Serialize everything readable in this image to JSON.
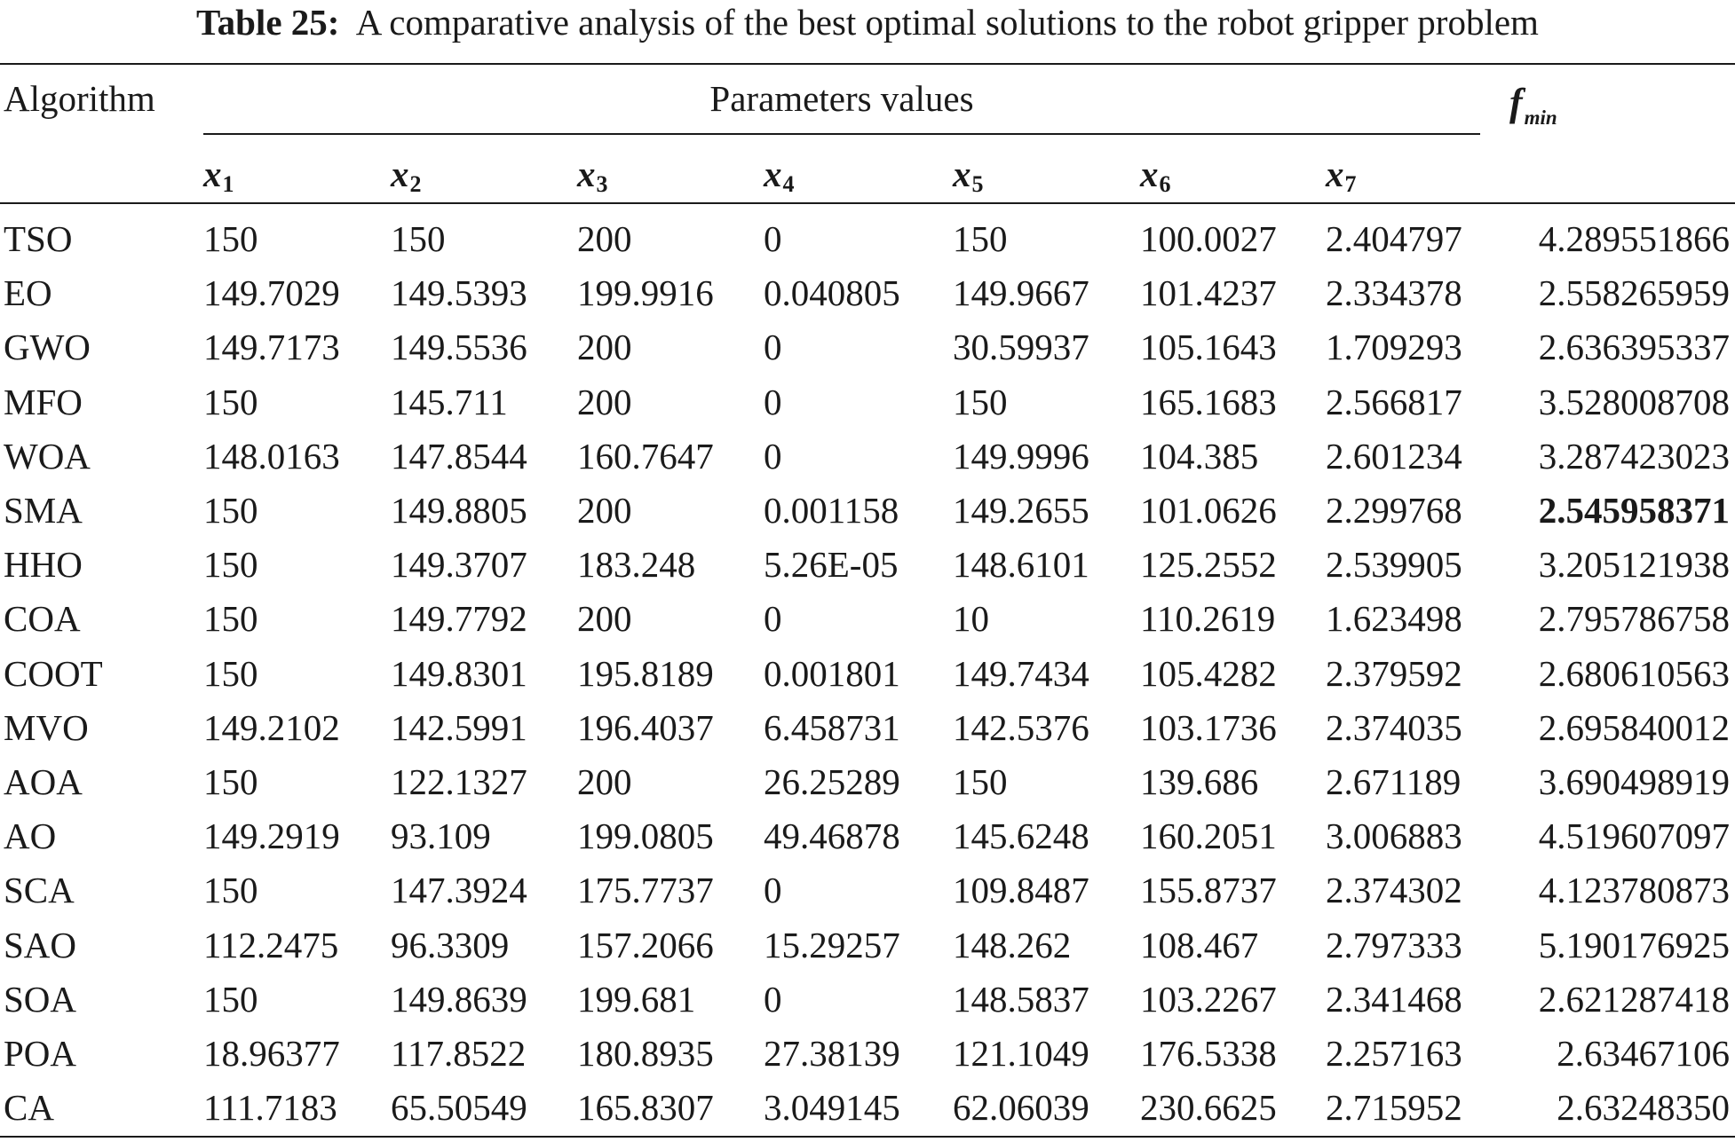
{
  "caption": {
    "label": "Table 25:",
    "text": "A comparative analysis of the best optimal solutions to the robot gripper problem"
  },
  "header": {
    "algorithm": "Algorithm",
    "params_group": "Parameters values",
    "fmin_base": "f",
    "fmin_sub": "min",
    "vars": [
      {
        "base": "x",
        "sub": "1"
      },
      {
        "base": "x",
        "sub": "2"
      },
      {
        "base": "x",
        "sub": "3"
      },
      {
        "base": "x",
        "sub": "4"
      },
      {
        "base": "x",
        "sub": "5"
      },
      {
        "base": "x",
        "sub": "6"
      },
      {
        "base": "x",
        "sub": "7"
      }
    ]
  },
  "rows": [
    {
      "alg": "TSO",
      "vals": [
        "150",
        "150",
        "200",
        "0",
        "150",
        "100.0027",
        "2.404797",
        "4.289551866"
      ],
      "best": false
    },
    {
      "alg": "EO",
      "vals": [
        "149.7029",
        "149.5393",
        "199.9916",
        "0.040805",
        "149.9667",
        "101.4237",
        "2.334378",
        "2.558265959"
      ],
      "best": false
    },
    {
      "alg": "GWO",
      "vals": [
        "149.7173",
        "149.5536",
        "200",
        "0",
        "30.59937",
        "105.1643",
        "1.709293",
        "2.636395337"
      ],
      "best": false
    },
    {
      "alg": "MFO",
      "vals": [
        "150",
        "145.711",
        "200",
        "0",
        "150",
        "165.1683",
        "2.566817",
        "3.528008708"
      ],
      "best": false
    },
    {
      "alg": "WOA",
      "vals": [
        "148.0163",
        "147.8544",
        "160.7647",
        "0",
        "149.9996",
        "104.385",
        "2.601234",
        "3.287423023"
      ],
      "best": false
    },
    {
      "alg": "SMA",
      "vals": [
        "150",
        "149.8805",
        "200",
        "0.001158",
        "149.2655",
        "101.0626",
        "2.299768",
        "2.545958371"
      ],
      "best": true
    },
    {
      "alg": "HHO",
      "vals": [
        "150",
        "149.3707",
        "183.248",
        "5.26E-05",
        "148.6101",
        "125.2552",
        "2.539905",
        "3.205121938"
      ],
      "best": false
    },
    {
      "alg": "COA",
      "vals": [
        "150",
        "149.7792",
        "200",
        "0",
        "10",
        "110.2619",
        "1.623498",
        "2.795786758"
      ],
      "best": false
    },
    {
      "alg": "COOT",
      "vals": [
        "150",
        "149.8301",
        "195.8189",
        "0.001801",
        "149.7434",
        "105.4282",
        "2.379592",
        "2.680610563"
      ],
      "best": false
    },
    {
      "alg": "MVO",
      "vals": [
        "149.2102",
        "142.5991",
        "196.4037",
        "6.458731",
        "142.5376",
        "103.1736",
        "2.374035",
        "2.695840012"
      ],
      "best": false
    },
    {
      "alg": "AOA",
      "vals": [
        "150",
        "122.1327",
        "200",
        "26.25289",
        "150",
        "139.686",
        "2.671189",
        "3.690498919"
      ],
      "best": false
    },
    {
      "alg": "AO",
      "vals": [
        "149.2919",
        "93.109",
        "199.0805",
        "49.46878",
        "145.6248",
        "160.2051",
        "3.006883",
        "4.519607097"
      ],
      "best": false
    },
    {
      "alg": "SCA",
      "vals": [
        "150",
        "147.3924",
        "175.7737",
        "0",
        "109.8487",
        "155.8737",
        "2.374302",
        "4.123780873"
      ],
      "best": false
    },
    {
      "alg": "SAO",
      "vals": [
        "112.2475",
        "96.3309",
        "157.2066",
        "15.29257",
        "148.262",
        "108.467",
        "2.797333",
        "5.190176925"
      ],
      "best": false
    },
    {
      "alg": "SOA",
      "vals": [
        "150",
        "149.8639",
        "199.681",
        "0",
        "148.5837",
        "103.2267",
        "2.341468",
        "2.621287418"
      ],
      "best": false
    },
    {
      "alg": "POA",
      "vals": [
        "18.96377",
        "117.8522",
        "180.8935",
        "27.38139",
        "121.1049",
        "176.5338",
        "2.257163",
        "2.63467106"
      ],
      "best": false
    },
    {
      "alg": "CA",
      "vals": [
        "111.7183",
        "65.50549",
        "165.8307",
        "3.049145",
        "62.06039",
        "230.6625",
        "2.715952",
        "2.63248350"
      ],
      "best": false
    }
  ]
}
